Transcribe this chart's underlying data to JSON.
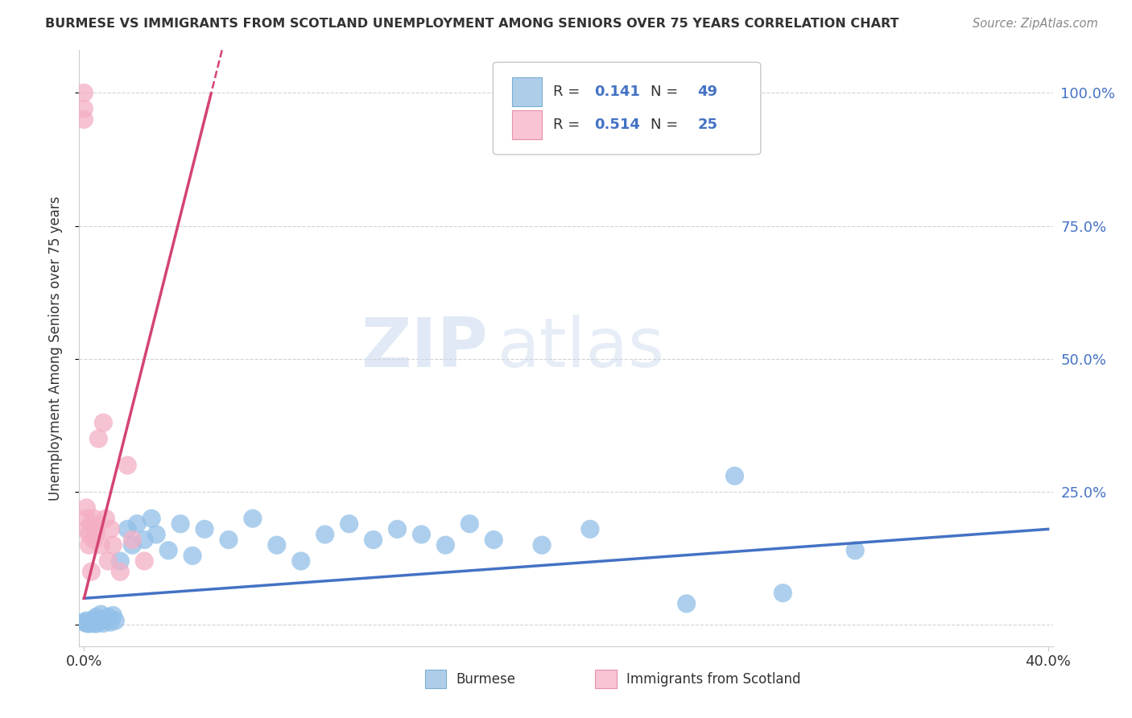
{
  "title": "BURMESE VS IMMIGRANTS FROM SCOTLAND UNEMPLOYMENT AMONG SENIORS OVER 75 YEARS CORRELATION CHART",
  "source": "Source: ZipAtlas.com",
  "ylabel": "Unemployment Among Seniors over 75 years",
  "xlim": [
    -0.002,
    0.402
  ],
  "ylim": [
    -0.04,
    1.08
  ],
  "xticks": [
    0.0,
    0.4
  ],
  "xtick_labels": [
    "0.0%",
    "40.0%"
  ],
  "yticks": [
    0.0,
    0.25,
    0.5,
    0.75,
    1.0
  ],
  "ytick_labels_right": [
    "",
    "25.0%",
    "50.0%",
    "75.0%",
    "100.0%"
  ],
  "burmese_color": "#92c0e8",
  "scotland_color": "#f4afc5",
  "burmese_line_color": "#4472c4",
  "scotland_line_color": "#d44472",
  "burmese_R": 0.141,
  "burmese_N": 49,
  "scotland_R": 0.514,
  "scotland_N": 25,
  "legend_label_1": "Burmese",
  "legend_label_2": "Immigrants from Scotland",
  "watermark_zip": "ZIP",
  "watermark_atlas": "atlas",
  "background_color": "#ffffff",
  "grid_color": "#c8c8c8",
  "title_color": "#333333",
  "source_color": "#888888",
  "axis_label_color": "#333333",
  "tick_color": "#4472c4",
  "legend_R_color": "#4472c4",
  "legend_N_color": "#4472c4"
}
